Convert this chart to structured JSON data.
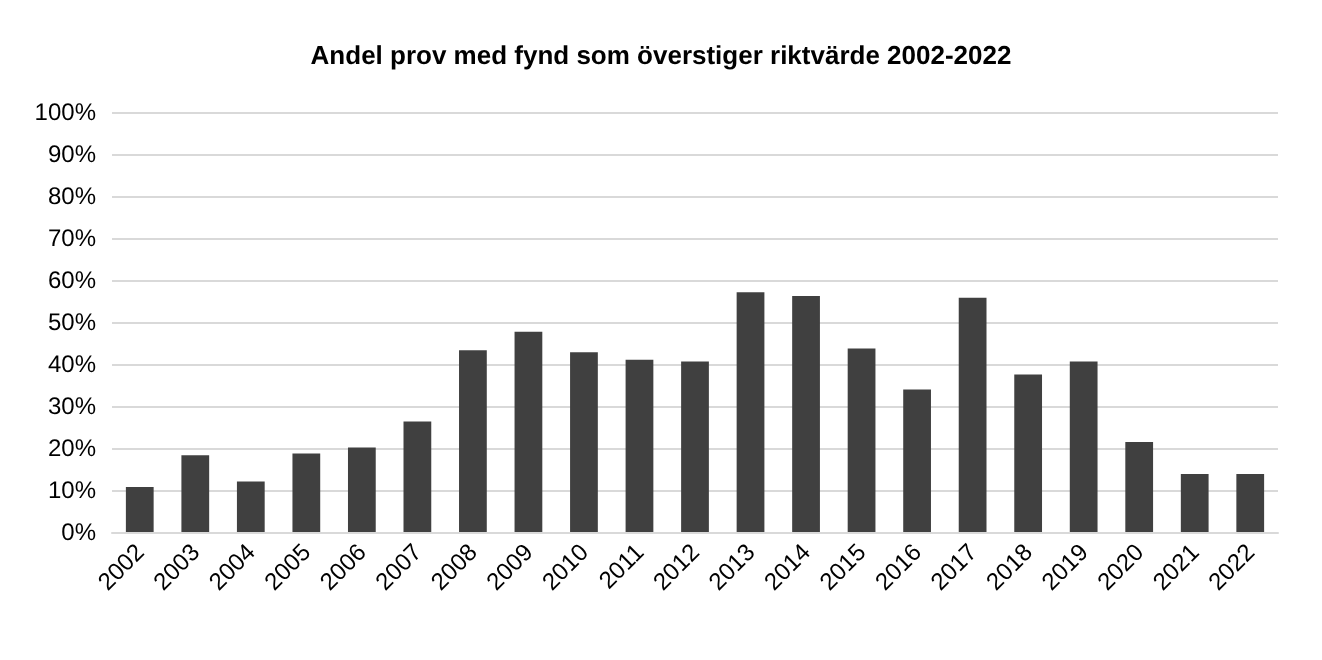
{
  "chart_data": {
    "type": "bar",
    "title": "Andel prov med fynd som överstiger riktvärde 2002-2022",
    "categories": [
      "2002",
      "2003",
      "2004",
      "2005",
      "2006",
      "2007",
      "2008",
      "2009",
      "2010",
      "2011",
      "2012",
      "2013",
      "2014",
      "2015",
      "2016",
      "2017",
      "2018",
      "2019",
      "2020",
      "2021",
      "2022"
    ],
    "values": [
      10.7,
      18.3,
      12,
      18.7,
      20.1,
      26.3,
      43.3,
      47.7,
      42.8,
      41,
      40.6,
      57.1,
      56.2,
      43.7,
      33.9,
      55.8,
      37.5,
      40.6,
      21.4,
      13.8,
      13.8
    ],
    "color": "#404040",
    "ylim": [
      0,
      100
    ],
    "yticks": [
      {
        "value": 0,
        "label": "0%"
      },
      {
        "value": 10,
        "label": "10%"
      },
      {
        "value": 20,
        "label": "20%"
      },
      {
        "value": 30,
        "label": "30%"
      },
      {
        "value": 40,
        "label": "40%"
      },
      {
        "value": 50,
        "label": "50%"
      },
      {
        "value": 60,
        "label": "60%"
      },
      {
        "value": 70,
        "label": "70%"
      },
      {
        "value": 80,
        "label": "80%"
      },
      {
        "value": 90,
        "label": "90%"
      },
      {
        "value": 100,
        "label": "100%"
      }
    ],
    "grid": "y"
  }
}
